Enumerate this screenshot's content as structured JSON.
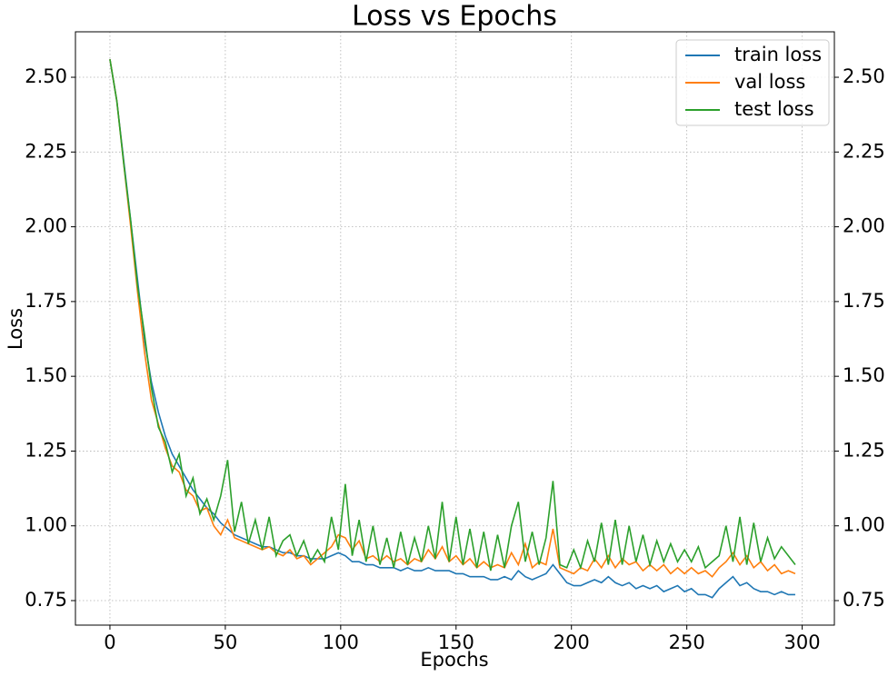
{
  "chart_data": {
    "type": "line",
    "title": "Loss vs Epochs",
    "xlabel": "Epochs",
    "ylabel": "Loss",
    "x": [
      0,
      3,
      6,
      9,
      12,
      15,
      18,
      21,
      24,
      27,
      30,
      33,
      36,
      39,
      42,
      45,
      48,
      51,
      54,
      57,
      60,
      63,
      66,
      69,
      72,
      75,
      78,
      81,
      84,
      87,
      90,
      93,
      96,
      99,
      102,
      105,
      108,
      111,
      114,
      117,
      120,
      123,
      126,
      129,
      132,
      135,
      138,
      141,
      144,
      147,
      150,
      153,
      156,
      159,
      162,
      165,
      168,
      171,
      174,
      177,
      180,
      183,
      186,
      189,
      192,
      195,
      198,
      201,
      204,
      207,
      210,
      213,
      216,
      219,
      222,
      225,
      228,
      231,
      234,
      237,
      240,
      243,
      246,
      249,
      252,
      255,
      258,
      261,
      264,
      267,
      270,
      273,
      276,
      279,
      282,
      285,
      288,
      291,
      294,
      297
    ],
    "series": [
      {
        "name": "train loss",
        "color": "#1f77b4",
        "values": [
          2.56,
          2.42,
          2.22,
          2.02,
          1.82,
          1.62,
          1.48,
          1.38,
          1.3,
          1.24,
          1.2,
          1.16,
          1.12,
          1.09,
          1.06,
          1.04,
          1.01,
          0.99,
          0.97,
          0.96,
          0.95,
          0.94,
          0.93,
          0.93,
          0.92,
          0.91,
          0.91,
          0.9,
          0.9,
          0.89,
          0.89,
          0.89,
          0.9,
          0.91,
          0.9,
          0.88,
          0.88,
          0.87,
          0.87,
          0.86,
          0.86,
          0.86,
          0.85,
          0.86,
          0.85,
          0.85,
          0.86,
          0.85,
          0.85,
          0.85,
          0.84,
          0.84,
          0.83,
          0.83,
          0.83,
          0.82,
          0.82,
          0.83,
          0.82,
          0.85,
          0.83,
          0.82,
          0.83,
          0.84,
          0.87,
          0.84,
          0.81,
          0.8,
          0.8,
          0.81,
          0.82,
          0.81,
          0.83,
          0.81,
          0.8,
          0.81,
          0.79,
          0.8,
          0.79,
          0.8,
          0.78,
          0.79,
          0.8,
          0.78,
          0.79,
          0.77,
          0.77,
          0.76,
          0.79,
          0.81,
          0.83,
          0.8,
          0.81,
          0.79,
          0.78,
          0.78,
          0.77,
          0.78,
          0.77,
          0.77
        ]
      },
      {
        "name": "val loss",
        "color": "#ff7f0e",
        "values": [
          2.56,
          2.42,
          2.21,
          2.0,
          1.78,
          1.58,
          1.42,
          1.34,
          1.26,
          1.2,
          1.18,
          1.12,
          1.1,
          1.05,
          1.06,
          1.0,
          0.97,
          1.02,
          0.96,
          0.95,
          0.94,
          0.93,
          0.92,
          0.93,
          0.91,
          0.9,
          0.92,
          0.89,
          0.9,
          0.87,
          0.89,
          0.91,
          0.93,
          0.97,
          0.96,
          0.92,
          0.95,
          0.89,
          0.9,
          0.88,
          0.9,
          0.88,
          0.89,
          0.87,
          0.89,
          0.88,
          0.92,
          0.89,
          0.93,
          0.88,
          0.9,
          0.87,
          0.89,
          0.86,
          0.88,
          0.86,
          0.87,
          0.86,
          0.91,
          0.87,
          0.94,
          0.86,
          0.88,
          0.87,
          0.99,
          0.86,
          0.85,
          0.84,
          0.86,
          0.85,
          0.89,
          0.86,
          0.9,
          0.86,
          0.89,
          0.87,
          0.88,
          0.85,
          0.87,
          0.85,
          0.87,
          0.84,
          0.86,
          0.84,
          0.86,
          0.84,
          0.85,
          0.83,
          0.86,
          0.88,
          0.91,
          0.87,
          0.9,
          0.86,
          0.88,
          0.85,
          0.87,
          0.84,
          0.85,
          0.84
        ]
      },
      {
        "name": "test loss",
        "color": "#2ca02c",
        "values": [
          2.56,
          2.42,
          2.21,
          2.02,
          1.8,
          1.64,
          1.46,
          1.33,
          1.28,
          1.18,
          1.24,
          1.1,
          1.16,
          1.04,
          1.09,
          1.02,
          1.1,
          1.22,
          0.98,
          1.08,
          0.94,
          1.02,
          0.92,
          1.03,
          0.9,
          0.95,
          0.97,
          0.9,
          0.95,
          0.88,
          0.92,
          0.88,
          1.03,
          0.92,
          1.14,
          0.9,
          1.02,
          0.88,
          1.0,
          0.87,
          0.96,
          0.86,
          0.98,
          0.87,
          0.96,
          0.88,
          1.0,
          0.89,
          1.08,
          0.88,
          1.03,
          0.87,
          0.99,
          0.86,
          0.98,
          0.85,
          0.97,
          0.86,
          1.0,
          1.08,
          0.88,
          0.98,
          0.87,
          0.96,
          1.15,
          0.87,
          0.86,
          0.92,
          0.86,
          0.95,
          0.88,
          1.01,
          0.87,
          1.02,
          0.87,
          1.0,
          0.88,
          0.97,
          0.87,
          0.95,
          0.88,
          0.94,
          0.88,
          0.92,
          0.88,
          0.93,
          0.86,
          0.88,
          0.9,
          1.0,
          0.88,
          1.03,
          0.87,
          1.01,
          0.88,
          0.96,
          0.89,
          0.93,
          0.9,
          0.87
        ]
      }
    ],
    "xlim": [
      -14.95,
      313.95
    ],
    "xticks": [
      0,
      50,
      100,
      150,
      200,
      250,
      300
    ],
    "ylim": [
      0.668,
      2.652
    ],
    "yticks": [
      {
        "value": 0.75,
        "label": "0.75"
      },
      {
        "value": 1.0,
        "label": "1.00"
      },
      {
        "value": 1.25,
        "label": "1.25"
      },
      {
        "value": 1.5,
        "label": "1.50"
      },
      {
        "value": 1.75,
        "label": "1.75"
      },
      {
        "value": 2.0,
        "label": "2.00"
      },
      {
        "value": 2.25,
        "label": "2.25"
      },
      {
        "value": 2.5,
        "label": "2.50"
      }
    ],
    "y2lim": [
      0.668,
      2.652
    ],
    "y2ticks": [
      {
        "value": 0.75,
        "label": "0.75"
      },
      {
        "value": 1.0,
        "label": "1.00"
      },
      {
        "value": 1.25,
        "label": "1.25"
      },
      {
        "value": 1.5,
        "label": "1.50"
      },
      {
        "value": 1.75,
        "label": "1.75"
      },
      {
        "value": 2.0,
        "label": "2.00"
      },
      {
        "value": 2.25,
        "label": "2.25"
      },
      {
        "value": 2.5,
        "label": "2.50"
      }
    ],
    "grid": true,
    "legend": "upper right"
  }
}
